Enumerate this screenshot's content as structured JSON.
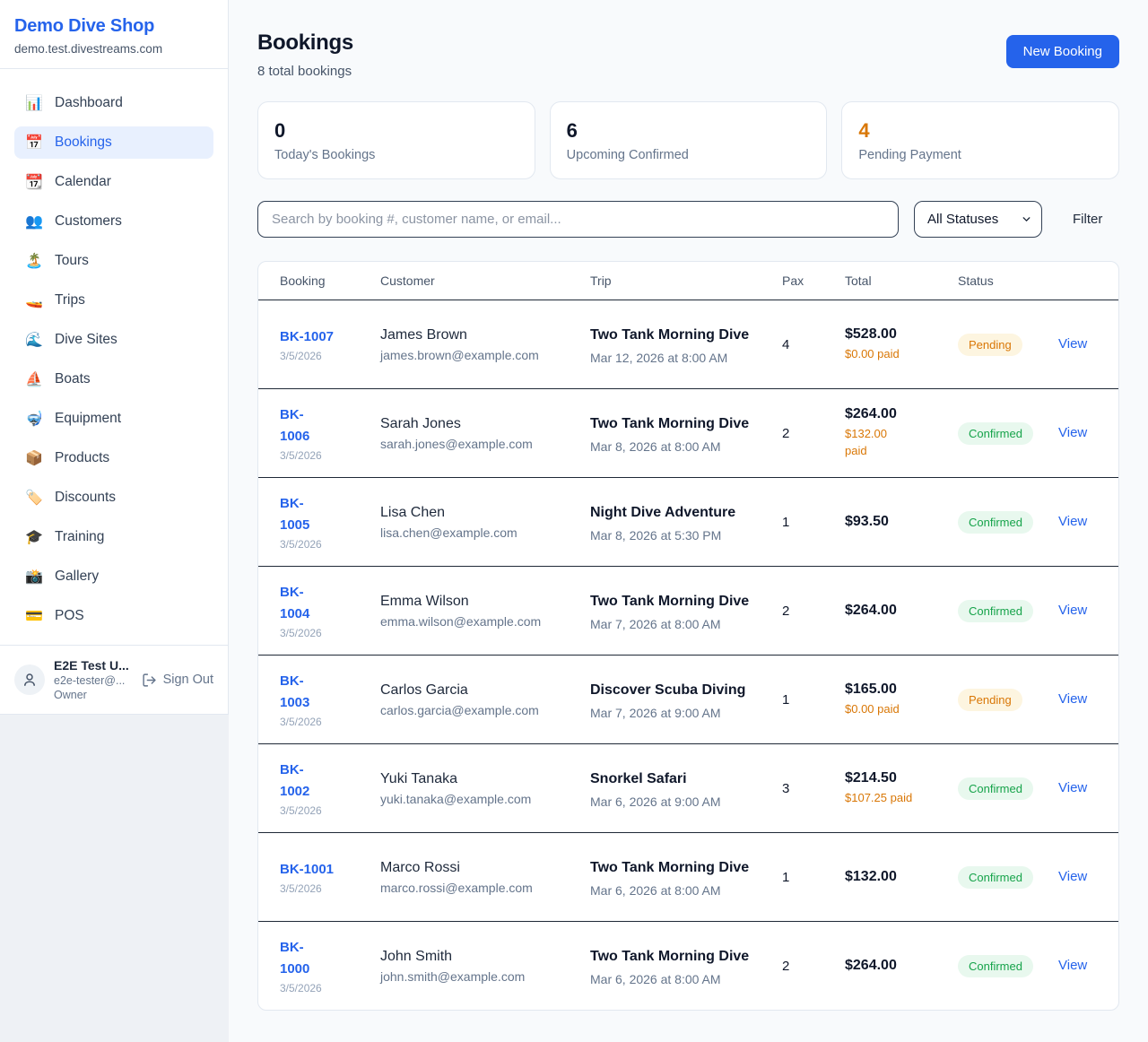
{
  "sidebar": {
    "brand": "Demo Dive Shop",
    "domain": "demo.test.divestreams.com",
    "items": [
      {
        "icon": "📊",
        "icon_name": "bar-chart-icon",
        "label": "Dashboard",
        "active": false
      },
      {
        "icon": "📅",
        "icon_name": "calendar-icon",
        "label": "Bookings",
        "active": true
      },
      {
        "icon": "📆",
        "icon_name": "tear-calendar-icon",
        "label": "Calendar",
        "active": false
      },
      {
        "icon": "👥",
        "icon_name": "people-icon",
        "label": "Customers",
        "active": false
      },
      {
        "icon": "🏝️",
        "icon_name": "island-icon",
        "label": "Tours",
        "active": false
      },
      {
        "icon": "🚤",
        "icon_name": "speedboat-icon",
        "label": "Trips",
        "active": false
      },
      {
        "icon": "🌊",
        "icon_name": "wave-icon",
        "label": "Dive Sites",
        "active": false
      },
      {
        "icon": "⛵",
        "icon_name": "sailboat-icon",
        "label": "Boats",
        "active": false
      },
      {
        "icon": "🤿",
        "icon_name": "diving-mask-icon",
        "label": "Equipment",
        "active": false
      },
      {
        "icon": "📦",
        "icon_name": "package-icon",
        "label": "Products",
        "active": false
      },
      {
        "icon": "🏷️",
        "icon_name": "tag-icon",
        "label": "Discounts",
        "active": false
      },
      {
        "icon": "🎓",
        "icon_name": "graduation-cap-icon",
        "label": "Training",
        "active": false
      },
      {
        "icon": "📸",
        "icon_name": "camera-icon",
        "label": "Gallery",
        "active": false
      },
      {
        "icon": "💳",
        "icon_name": "credit-card-icon",
        "label": "POS",
        "active": false
      }
    ],
    "user": {
      "name": "E2E Test U...",
      "email": "e2e-tester@...",
      "role": "Owner",
      "sign_out": "Sign Out"
    }
  },
  "header": {
    "title": "Bookings",
    "subtitle": "8 total bookings",
    "new_booking": "New Booking"
  },
  "stats": [
    {
      "value": "0",
      "label": "Today's Bookings",
      "color": "#0f172a"
    },
    {
      "value": "6",
      "label": "Upcoming Confirmed",
      "color": "#0f172a"
    },
    {
      "value": "4",
      "label": "Pending Payment",
      "color": "#d97706"
    }
  ],
  "controls": {
    "search_placeholder": "Search by booking #, customer name, or email...",
    "status_filter": "All Statuses",
    "filter_label": "Filter"
  },
  "table": {
    "columns": [
      "Booking",
      "Customer",
      "Trip",
      "Pax",
      "Total",
      "Status"
    ],
    "view_label": "View",
    "status_styles": {
      "Pending": {
        "bg": "#fdf5e0",
        "fg": "#d97706"
      },
      "Confirmed": {
        "bg": "#e8f8ee",
        "fg": "#16a34a"
      }
    },
    "rows": [
      {
        "id": "BK-1007",
        "date": "3/5/2026",
        "customer": "James Brown",
        "email": "james.brown@example.com",
        "trip": "Two Tank Morning Dive",
        "trip_time": "Mar 12, 2026 at 8:00 AM",
        "pax": "4",
        "total": "$528.00",
        "paid": "$0.00 paid",
        "status": "Pending"
      },
      {
        "id": "BK-\n1006",
        "date": "3/5/2026",
        "customer": "Sarah Jones",
        "email": "sarah.jones@example.com",
        "trip": "Two Tank Morning Dive",
        "trip_time": "Mar 8, 2026 at 8:00 AM",
        "pax": "2",
        "total": "$264.00",
        "paid": "$132.00\npaid",
        "status": "Confirmed"
      },
      {
        "id": "BK-\n1005",
        "date": "3/5/2026",
        "customer": "Lisa Chen",
        "email": "lisa.chen@example.com",
        "trip": "Night Dive Adventure",
        "trip_time": "Mar 8, 2026 at 5:30 PM",
        "pax": "1",
        "total": "$93.50",
        "paid": "",
        "status": "Confirmed"
      },
      {
        "id": "BK-\n1004",
        "date": "3/5/2026",
        "customer": "Emma Wilson",
        "email": "emma.wilson@example.com",
        "trip": "Two Tank Morning Dive",
        "trip_time": "Mar 7, 2026 at 8:00 AM",
        "pax": "2",
        "total": "$264.00",
        "paid": "",
        "status": "Confirmed"
      },
      {
        "id": "BK-\n1003",
        "date": "3/5/2026",
        "customer": "Carlos Garcia",
        "email": "carlos.garcia@example.com",
        "trip": "Discover Scuba Diving",
        "trip_time": "Mar 7, 2026 at 9:00 AM",
        "pax": "1",
        "total": "$165.00",
        "paid": "$0.00 paid",
        "status": "Pending"
      },
      {
        "id": "BK-\n1002",
        "date": "3/5/2026",
        "customer": "Yuki Tanaka",
        "email": "yuki.tanaka@example.com",
        "trip": "Snorkel Safari",
        "trip_time": "Mar 6, 2026 at 9:00 AM",
        "pax": "3",
        "total": "$214.50",
        "paid": "$107.25 paid",
        "status": "Confirmed"
      },
      {
        "id": "BK-1001",
        "date": "3/5/2026",
        "customer": "Marco Rossi",
        "email": "marco.rossi@example.com",
        "trip": "Two Tank Morning Dive",
        "trip_time": "Mar 6, 2026 at 8:00 AM",
        "pax": "1",
        "total": "$132.00",
        "paid": "",
        "status": "Confirmed"
      },
      {
        "id": "BK-\n1000",
        "date": "3/5/2026",
        "customer": "John Smith",
        "email": "john.smith@example.com",
        "trip": "Two Tank Morning Dive",
        "trip_time": "Mar 6, 2026 at 8:00 AM",
        "pax": "2",
        "total": "$264.00",
        "paid": "",
        "status": "Confirmed"
      }
    ]
  }
}
